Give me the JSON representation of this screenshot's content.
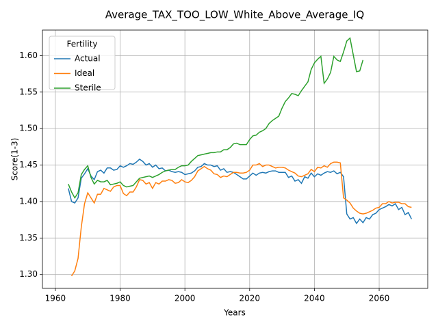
{
  "chart_data": {
    "type": "line",
    "title": "Average_TAX_TOO_LOW_White_Above_Average_IQ",
    "x_label": "Years",
    "y_label": "Score(1-3)",
    "legend_title": "Fertility",
    "legend": "upper left",
    "grid": true,
    "xlim": [
      1956,
      2075
    ],
    "xticks": [
      1960,
      1980,
      2000,
      2020,
      2040,
      2060
    ],
    "ylim": [
      1.281,
      1.635
    ],
    "yticks": [
      {
        "value": 1.3,
        "label": "1.30"
      },
      {
        "value": 1.35,
        "label": "1.35"
      },
      {
        "value": 1.4,
        "label": "1.40"
      },
      {
        "value": 1.45,
        "label": "1.45"
      },
      {
        "value": 1.5,
        "label": "1.50"
      },
      {
        "value": 1.55,
        "label": "1.55"
      },
      {
        "value": 1.6,
        "label": "1.60"
      }
    ],
    "x": [
      1964,
      1965,
      1966,
      1967,
      1968,
      1969,
      1970,
      1971,
      1972,
      1973,
      1974,
      1975,
      1976,
      1977,
      1978,
      1979,
      1980,
      1981,
      1982,
      1983,
      1984,
      1985,
      1986,
      1987,
      1988,
      1989,
      1990,
      1991,
      1992,
      1993,
      1994,
      1995,
      1996,
      1997,
      1998,
      1999,
      2000,
      2001,
      2002,
      2003,
      2004,
      2005,
      2006,
      2007,
      2008,
      2009,
      2010,
      2011,
      2012,
      2013,
      2014,
      2015,
      2016,
      2017,
      2018,
      2019,
      2020,
      2021,
      2022,
      2023,
      2024,
      2025,
      2026,
      2027,
      2028,
      2029,
      2030,
      2031,
      2032,
      2033,
      2034,
      2035,
      2036,
      2037,
      2038,
      2039,
      2040,
      2041,
      2042,
      2043,
      2044,
      2045,
      2046,
      2047,
      2048,
      2049,
      2050,
      2051,
      2052,
      2053,
      2054,
      2055,
      2056,
      2057,
      2058,
      2059,
      2060,
      2061,
      2062,
      2063,
      2064,
      2065,
      2066,
      2067,
      2068,
      2069,
      2070
    ],
    "series": [
      {
        "name": "Actual",
        "color": "#1f77b4",
        "values": [
          1.418,
          1.4,
          1.398,
          1.405,
          1.432,
          1.438,
          1.445,
          1.435,
          1.43,
          1.441,
          1.443,
          1.439,
          1.446,
          1.446,
          1.443,
          1.444,
          1.449,
          1.447,
          1.449,
          1.452,
          1.451,
          1.454,
          1.458,
          1.455,
          1.45,
          1.452,
          1.447,
          1.45,
          1.445,
          1.446,
          1.442,
          1.443,
          1.441,
          1.44,
          1.441,
          1.44,
          1.437,
          1.438,
          1.439,
          1.442,
          1.447,
          1.448,
          1.452,
          1.45,
          1.45,
          1.448,
          1.449,
          1.443,
          1.445,
          1.44,
          1.441,
          1.44,
          1.437,
          1.434,
          1.431,
          1.431,
          1.435,
          1.439,
          1.436,
          1.439,
          1.44,
          1.439,
          1.441,
          1.442,
          1.442,
          1.44,
          1.44,
          1.44,
          1.433,
          1.435,
          1.428,
          1.43,
          1.425,
          1.434,
          1.432,
          1.439,
          1.434,
          1.438,
          1.436,
          1.439,
          1.441,
          1.44,
          1.442,
          1.438,
          1.44,
          1.434,
          1.383,
          1.376,
          1.378,
          1.37,
          1.376,
          1.371,
          1.378,
          1.376,
          1.382,
          1.384,
          1.389,
          1.391,
          1.393,
          1.396,
          1.394,
          1.397,
          1.389,
          1.392,
          1.382,
          1.385,
          1.376
        ]
      },
      {
        "name": "Ideal",
        "color": "#ff7f0e",
        "values": [
          null,
          1.298,
          1.305,
          1.322,
          1.365,
          1.397,
          1.412,
          1.405,
          1.398,
          1.41,
          1.41,
          1.418,
          1.416,
          1.414,
          1.42,
          1.422,
          1.422,
          1.411,
          1.408,
          1.413,
          1.413,
          1.42,
          1.43,
          1.429,
          1.424,
          1.426,
          1.418,
          1.426,
          1.424,
          1.428,
          1.428,
          1.43,
          1.429,
          1.425,
          1.426,
          1.43,
          1.427,
          1.426,
          1.429,
          1.434,
          1.442,
          1.445,
          1.448,
          1.445,
          1.443,
          1.438,
          1.437,
          1.433,
          1.435,
          1.434,
          1.437,
          1.44,
          1.44,
          1.439,
          1.439,
          1.44,
          1.443,
          1.45,
          1.45,
          1.452,
          1.448,
          1.45,
          1.45,
          1.448,
          1.446,
          1.447,
          1.447,
          1.446,
          1.443,
          1.441,
          1.439,
          1.435,
          1.434,
          1.436,
          1.438,
          1.444,
          1.441,
          1.447,
          1.446,
          1.449,
          1.447,
          1.452,
          1.454,
          1.454,
          1.453,
          1.405,
          1.402,
          1.398,
          1.391,
          1.387,
          1.384,
          1.383,
          1.384,
          1.386,
          1.388,
          1.391,
          1.392,
          1.397,
          1.397,
          1.4,
          1.398,
          1.399,
          1.399,
          1.397,
          1.397,
          1.393,
          1.392
        ]
      },
      {
        "name": "Sterile",
        "color": "#2ca02c",
        "values": [
          1.424,
          1.413,
          1.405,
          1.412,
          1.437,
          1.444,
          1.449,
          1.433,
          1.424,
          1.429,
          1.427,
          1.427,
          1.429,
          1.423,
          1.424,
          1.425,
          1.427,
          1.422,
          1.42,
          1.421,
          1.422,
          1.427,
          1.432,
          1.433,
          1.434,
          1.435,
          1.433,
          1.435,
          1.437,
          1.44,
          1.442,
          1.443,
          1.444,
          1.444,
          1.447,
          1.449,
          1.449,
          1.45,
          1.455,
          1.459,
          1.463,
          1.464,
          1.465,
          1.466,
          1.467,
          1.467,
          1.468,
          1.468,
          1.471,
          1.471,
          1.474,
          1.479,
          1.48,
          1.478,
          1.478,
          1.478,
          1.485,
          1.49,
          1.491,
          1.495,
          1.497,
          1.5,
          1.507,
          1.511,
          1.514,
          1.517,
          1.528,
          1.537,
          1.542,
          1.548,
          1.547,
          1.545,
          1.552,
          1.558,
          1.564,
          1.581,
          1.59,
          1.595,
          1.599,
          1.562,
          1.568,
          1.577,
          1.599,
          1.594,
          1.592,
          1.605,
          1.62,
          1.624,
          1.601,
          1.578,
          1.579,
          1.594,
          null,
          null,
          null,
          null,
          null,
          null,
          null,
          null,
          null,
          null,
          null,
          null,
          null,
          null,
          null
        ]
      }
    ]
  }
}
